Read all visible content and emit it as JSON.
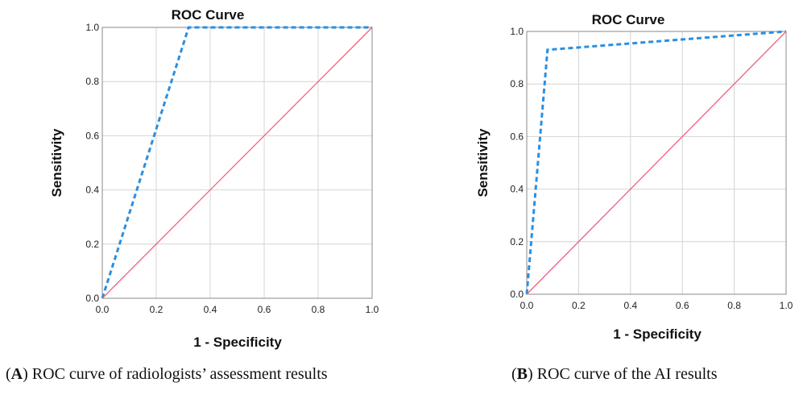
{
  "chart_data": [
    {
      "type": "line",
      "title": "ROC Curve",
      "xlabel": "1 - Specificity",
      "ylabel": "Sensitivity",
      "xlim": [
        0,
        1
      ],
      "ylim": [
        0,
        1
      ],
      "grid": true,
      "x_ticks": [
        "0.0",
        "0.2",
        "0.4",
        "0.6",
        "0.8",
        "1.0"
      ],
      "y_ticks": [
        "0.0",
        "0.2",
        "0.4",
        "0.6",
        "0.8",
        "1.0"
      ],
      "series": [
        {
          "name": "ROC",
          "style": "dashed",
          "color": "#2b8fe0",
          "x": [
            0.0,
            0.32,
            1.0
          ],
          "y": [
            0.0,
            1.0,
            1.0
          ]
        },
        {
          "name": "Reference line",
          "style": "solid",
          "color": "#f06080",
          "x": [
            0.0,
            1.0
          ],
          "y": [
            0.0,
            1.0
          ]
        }
      ]
    },
    {
      "type": "line",
      "title": "ROC Curve",
      "xlabel": "1 - Specificity",
      "ylabel": "Sensitivity",
      "xlim": [
        0,
        1
      ],
      "ylim": [
        0,
        1
      ],
      "grid": true,
      "x_ticks": [
        "0.0",
        "0.2",
        "0.4",
        "0.6",
        "0.8",
        "1.0"
      ],
      "y_ticks": [
        "0.0",
        "0.2",
        "0.4",
        "0.6",
        "0.8",
        "1.0"
      ],
      "series": [
        {
          "name": "ROC",
          "style": "dashed",
          "color": "#2b8fe0",
          "x": [
            0.0,
            0.08,
            1.0
          ],
          "y": [
            0.0,
            0.93,
            1.0
          ]
        },
        {
          "name": "Reference line",
          "style": "solid",
          "color": "#f06080",
          "x": [
            0.0,
            1.0
          ],
          "y": [
            0.0,
            1.0
          ]
        }
      ]
    }
  ],
  "captions": [
    {
      "letter": "A",
      "text": ") ROC curve of radiologists’ assessment results"
    },
    {
      "letter": "B",
      "text": ") ROC curve of the AI results"
    }
  ]
}
